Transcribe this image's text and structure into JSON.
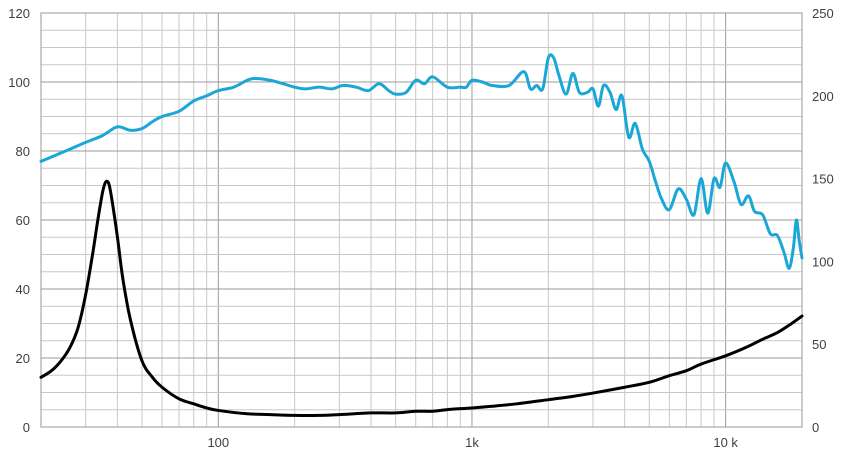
{
  "chart_data": {
    "type": "line",
    "title": "",
    "xlabel": "",
    "ylabel_left": "",
    "ylabel_right": "",
    "x_scale": "log",
    "xlim": [
      20,
      20000
    ],
    "ylim_left": [
      0,
      120
    ],
    "ylim_right": [
      0,
      250
    ],
    "grid": true,
    "x_ticks": [
      {
        "value": 100,
        "label": "100"
      },
      {
        "value": 1000,
        "label": "1k"
      },
      {
        "value": 10000,
        "label": "10 k"
      }
    ],
    "y_ticks_left": [
      {
        "value": 0,
        "label": "0"
      },
      {
        "value": 20,
        "label": "20"
      },
      {
        "value": 40,
        "label": "40"
      },
      {
        "value": 60,
        "label": "60"
      },
      {
        "value": 80,
        "label": "80"
      },
      {
        "value": 100,
        "label": "100"
      },
      {
        "value": 120,
        "label": "120"
      }
    ],
    "y_ticks_right": [
      {
        "value": 0,
        "label": "0"
      },
      {
        "value": 50,
        "label": "50"
      },
      {
        "value": 100,
        "label": "100"
      },
      {
        "value": 150,
        "label": "150"
      },
      {
        "value": 200,
        "label": "200"
      },
      {
        "value": 250,
        "label": "250"
      }
    ],
    "series": [
      {
        "axis": "left",
        "color": "#1aa7d8",
        "points": [
          [
            20,
            77
          ],
          [
            25,
            80
          ],
          [
            30,
            82.5
          ],
          [
            35,
            84.5
          ],
          [
            40,
            87
          ],
          [
            45,
            86
          ],
          [
            50,
            86.5
          ],
          [
            55,
            88.5
          ],
          [
            60,
            90
          ],
          [
            70,
            91.5
          ],
          [
            80,
            94.5
          ],
          [
            90,
            96
          ],
          [
            100,
            97.5
          ],
          [
            115,
            98.5
          ],
          [
            130,
            100.5
          ],
          [
            140,
            101
          ],
          [
            160,
            100.5
          ],
          [
            180,
            99.5
          ],
          [
            200,
            98.5
          ],
          [
            220,
            98
          ],
          [
            250,
            98.5
          ],
          [
            280,
            98
          ],
          [
            310,
            99
          ],
          [
            350,
            98.5
          ],
          [
            390,
            97.5
          ],
          [
            430,
            99.5
          ],
          [
            470,
            97.5
          ],
          [
            500,
            96.5
          ],
          [
            550,
            97
          ],
          [
            600,
            100.5
          ],
          [
            650,
            99.5
          ],
          [
            700,
            101.5
          ],
          [
            800,
            98.5
          ],
          [
            900,
            98.5
          ],
          [
            950,
            98.5
          ],
          [
            1000,
            100.5
          ],
          [
            1100,
            100
          ],
          [
            1200,
            99
          ],
          [
            1400,
            99
          ],
          [
            1600,
            103
          ],
          [
            1700,
            98
          ],
          [
            1800,
            99
          ],
          [
            1900,
            98
          ],
          [
            2000,
            107
          ],
          [
            2100,
            107
          ],
          [
            2200,
            102
          ],
          [
            2350,
            96.5
          ],
          [
            2500,
            102.5
          ],
          [
            2650,
            97
          ],
          [
            2850,
            97
          ],
          [
            3000,
            98
          ],
          [
            3150,
            93
          ],
          [
            3300,
            99
          ],
          [
            3500,
            97
          ],
          [
            3700,
            92
          ],
          [
            3900,
            96
          ],
          [
            4150,
            84
          ],
          [
            4400,
            88
          ],
          [
            4700,
            80.5
          ],
          [
            5000,
            77
          ],
          [
            5300,
            71
          ],
          [
            5600,
            66
          ],
          [
            6000,
            63
          ],
          [
            6500,
            69
          ],
          [
            7000,
            66
          ],
          [
            7500,
            61.5
          ],
          [
            8000,
            72
          ],
          [
            8500,
            62
          ],
          [
            9000,
            72
          ],
          [
            9500,
            69.5
          ],
          [
            10000,
            76.5
          ],
          [
            10800,
            71
          ],
          [
            11500,
            64.5
          ],
          [
            12300,
            67
          ],
          [
            13000,
            62.5
          ],
          [
            14000,
            61.5
          ],
          [
            15000,
            56
          ],
          [
            16000,
            55.5
          ],
          [
            17000,
            50.5
          ],
          [
            17800,
            46
          ],
          [
            18500,
            52
          ],
          [
            19000,
            60
          ],
          [
            19500,
            54
          ],
          [
            20000,
            49
          ]
        ]
      },
      {
        "axis": "right",
        "color": "#000000",
        "points": [
          [
            20,
            30
          ],
          [
            22,
            34
          ],
          [
            24,
            40
          ],
          [
            26,
            48
          ],
          [
            28,
            60
          ],
          [
            30,
            80
          ],
          [
            32,
            105
          ],
          [
            33.5,
            125
          ],
          [
            35,
            142
          ],
          [
            36,
            148
          ],
          [
            37,
            147
          ],
          [
            38,
            138
          ],
          [
            40,
            115
          ],
          [
            42,
            90
          ],
          [
            45,
            65
          ],
          [
            50,
            40
          ],
          [
            55,
            30
          ],
          [
            60,
            24
          ],
          [
            70,
            17
          ],
          [
            80,
            14
          ],
          [
            90,
            11.5
          ],
          [
            100,
            10
          ],
          [
            130,
            8
          ],
          [
            160,
            7.5
          ],
          [
            200,
            7
          ],
          [
            250,
            7
          ],
          [
            300,
            7.5
          ],
          [
            400,
            8.5
          ],
          [
            500,
            8.5
          ],
          [
            600,
            9.5
          ],
          [
            700,
            9.5
          ],
          [
            800,
            10.5
          ],
          [
            1000,
            11.5
          ],
          [
            1200,
            12.5
          ],
          [
            1500,
            14
          ],
          [
            2000,
            16.5
          ],
          [
            2500,
            18.5
          ],
          [
            3000,
            20.5
          ],
          [
            4000,
            24
          ],
          [
            5000,
            27
          ],
          [
            6000,
            31
          ],
          [
            7000,
            34
          ],
          [
            8000,
            38
          ],
          [
            10000,
            43
          ],
          [
            12000,
            48
          ],
          [
            14000,
            53
          ],
          [
            16000,
            57
          ],
          [
            18000,
            62
          ],
          [
            20000,
            67
          ]
        ]
      }
    ]
  }
}
